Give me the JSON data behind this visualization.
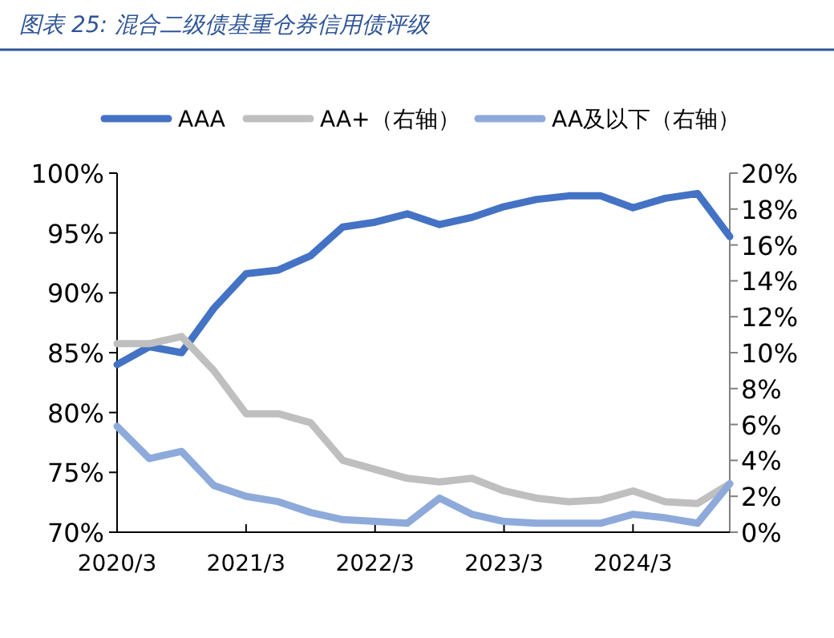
{
  "chart_data": {
    "type": "line",
    "title": "图表 25:  混合二级债基重仓券信用债评级",
    "categories": [
      "2020/3",
      null,
      null,
      null,
      "2021/3",
      null,
      null,
      null,
      "2022/3",
      null,
      null,
      null,
      "2023/3",
      null,
      null,
      null,
      "2024/3",
      null,
      null,
      null
    ],
    "series": [
      {
        "name": "AAA",
        "color": "#4472c4",
        "values": [
          84.0,
          85.5,
          85.0,
          88.7,
          91.6,
          91.9,
          93.1,
          95.5,
          95.9,
          96.6,
          95.7,
          96.3,
          97.2,
          97.8,
          98.1,
          98.1,
          97.1,
          97.9,
          98.3,
          94.7
        ]
      },
      {
        "name": "AA+（右轴）",
        "color": "#bfbfbf",
        "axis": "y2",
        "values": [
          10.5,
          10.5,
          10.9,
          9.0,
          6.6,
          6.6,
          6.1,
          4.0,
          3.5,
          3.0,
          2.8,
          3.0,
          2.3,
          1.9,
          1.7,
          1.8,
          2.3,
          1.7,
          1.6,
          2.7
        ]
      },
      {
        "name": "AA及以下（右轴）",
        "color": "#8eaadb",
        "axis": "y2",
        "values": [
          5.9,
          4.1,
          4.5,
          2.6,
          2.0,
          1.7,
          1.1,
          0.7,
          0.6,
          0.5,
          1.9,
          1.0,
          0.6,
          0.5,
          0.5,
          0.5,
          1.0,
          0.8,
          0.5,
          2.7
        ]
      }
    ],
    "ylim": [
      70,
      100
    ],
    "yticks": [
      {
        "value": 70,
        "label": "70%"
      },
      {
        "value": 75,
        "label": "75%"
      },
      {
        "value": 80,
        "label": "80%"
      },
      {
        "value": 85,
        "label": "85%"
      },
      {
        "value": 90,
        "label": "90%"
      },
      {
        "value": 95,
        "label": "95%"
      },
      {
        "value": 100,
        "label": "100%"
      }
    ],
    "y2lim": [
      0,
      20
    ],
    "y2ticks": [
      {
        "value": 0,
        "label": "0%"
      },
      {
        "value": 2,
        "label": "2%"
      },
      {
        "value": 4,
        "label": "4%"
      },
      {
        "value": 6,
        "label": "6%"
      },
      {
        "value": 8,
        "label": "8%"
      },
      {
        "value": 10,
        "label": "10%"
      },
      {
        "value": 12,
        "label": "12%"
      },
      {
        "value": 14,
        "label": "14%"
      },
      {
        "value": 16,
        "label": "16%"
      },
      {
        "value": 18,
        "label": "18%"
      },
      {
        "value": 20,
        "label": "20%"
      }
    ],
    "legend": "top",
    "grid": false,
    "marker": "none",
    "line_style": "solid"
  }
}
